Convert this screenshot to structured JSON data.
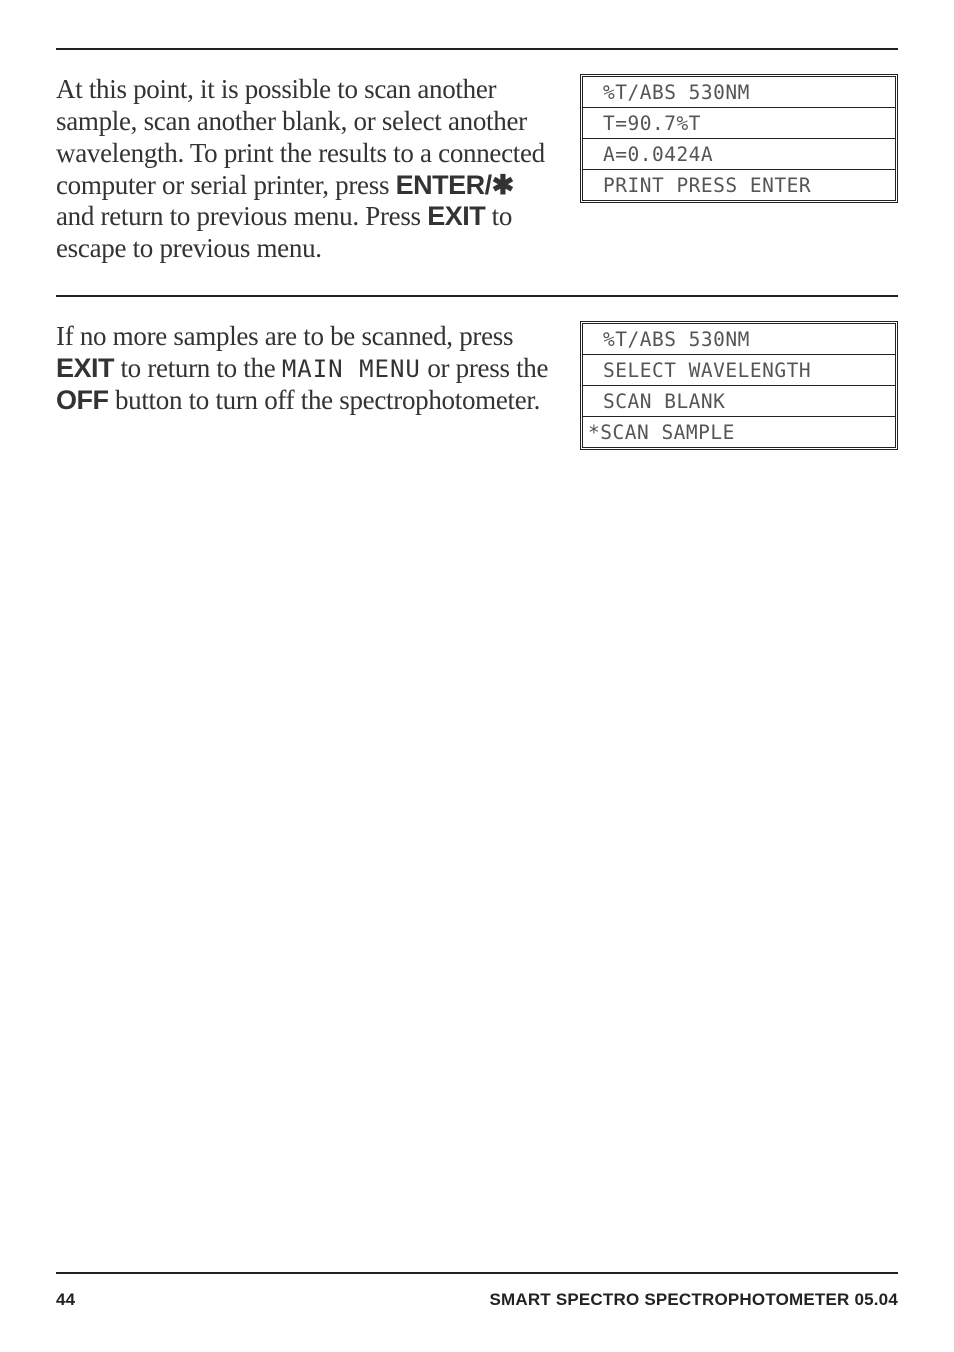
{
  "section1": {
    "para_html": "At this point, it is possible to scan another sample, scan another blank, or select another wavelength. To print the results to a connected computer or serial printer, press <span class=\"bold\">ENTER/&#10033;</span> and return to previous menu. Press <span class=\"bold\">EXIT</span> to escape to previous menu.",
    "lcd": [
      "%T/ABS 530NM",
      "T=90.7%T",
      "A=0.0424A",
      "PRINT PRESS ENTER"
    ]
  },
  "section2": {
    "para_html": "If no more samples are to be scanned, press <span class=\"bold\">EXIT</span> to return to the <span class=\"display-font\">MAIN MENU</span> or press the <span class=\"bold\">OFF</span> button to turn off the spectrophotometer.",
    "lcd": [
      "%T/ABS 530NM",
      "SELECT WAVELENGTH",
      "SCAN BLANK",
      "*SCAN SAMPLE"
    ]
  },
  "footer": {
    "page": "44",
    "title": "SMART SPECTRO SPECTROPHOTOMETER  05.04"
  }
}
